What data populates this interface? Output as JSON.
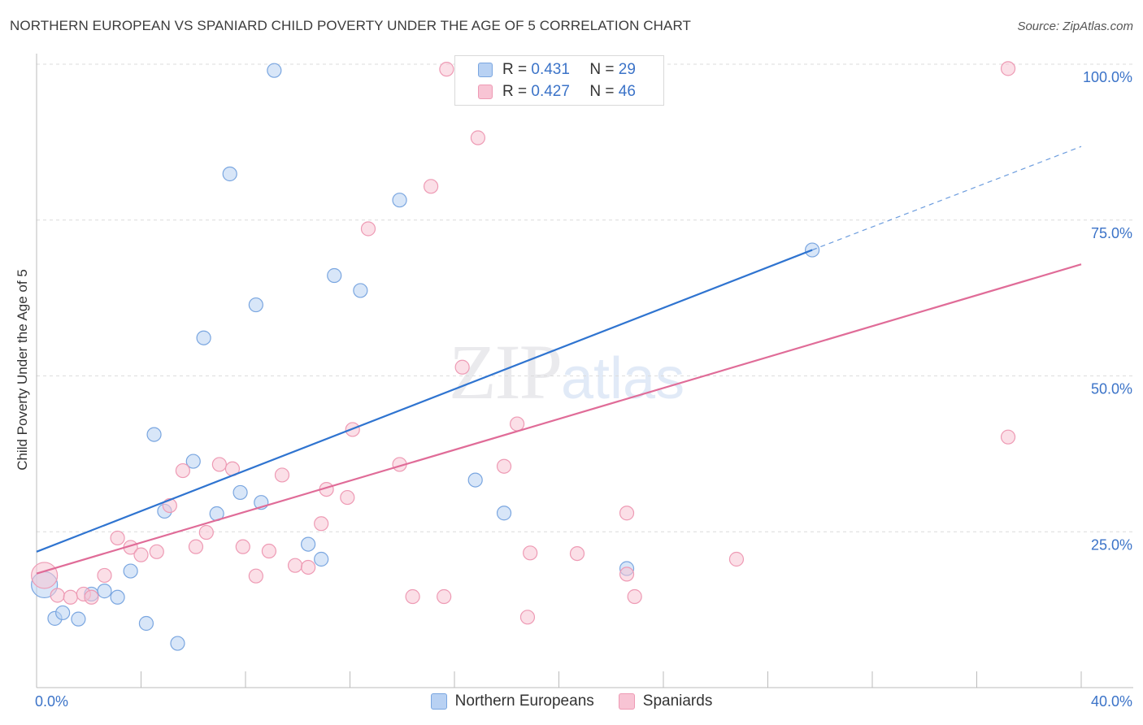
{
  "title": "NORTHERN EUROPEAN VS SPANIARD CHILD POVERTY UNDER THE AGE OF 5 CORRELATION CHART",
  "source": "Source: ZipAtlas.com",
  "watermark": {
    "zip": "ZIP",
    "atlas": "atlas"
  },
  "legend": {
    "r_label": "R =",
    "n_label": "N =",
    "rows": [
      {
        "r": "0.431",
        "n": "29"
      },
      {
        "r": "0.427",
        "n": "46"
      }
    ]
  },
  "chart_data": {
    "type": "scatter",
    "title": "NORTHERN EUROPEAN VS SPANIARD CHILD POVERTY UNDER THE AGE OF 5 CORRELATION CHART",
    "xlabel": "",
    "ylabel": "Child Poverty Under the Age of 5",
    "xlim": [
      0,
      40
    ],
    "ylim": [
      0,
      100
    ],
    "x_tick_labels": [
      "0.0%",
      "40.0%"
    ],
    "y_ticks": [
      25,
      50,
      75,
      100
    ],
    "y_tick_labels": [
      "25.0%",
      "50.0%",
      "75.0%",
      "100.0%"
    ],
    "grid": true,
    "legend_position": "top-center",
    "series": [
      {
        "name": "Northern Europeans",
        "color": "#7aa6e0",
        "fill": "#b8d1f3",
        "line_color": "#2f74d0",
        "r": 0.431,
        "n": 29,
        "trend": {
          "x": [
            0,
            29.7
          ],
          "y": [
            21.8,
            70.2
          ],
          "dashed_to": [
            40,
            86.8
          ]
        },
        "points": [
          [
            0.3,
            16.5
          ],
          [
            0.7,
            11.1
          ],
          [
            1.0,
            12.0
          ],
          [
            1.6,
            11.0
          ],
          [
            2.1,
            15.0
          ],
          [
            2.6,
            15.5
          ],
          [
            3.1,
            14.5
          ],
          [
            3.6,
            18.7
          ],
          [
            4.2,
            10.3
          ],
          [
            4.5,
            40.6
          ],
          [
            4.9,
            28.3
          ],
          [
            5.4,
            7.1
          ],
          [
            6.0,
            36.3
          ],
          [
            6.4,
            56.1
          ],
          [
            6.9,
            27.9
          ],
          [
            7.4,
            82.4
          ],
          [
            7.8,
            31.3
          ],
          [
            8.4,
            61.4
          ],
          [
            8.6,
            29.7
          ],
          [
            9.1,
            99.0
          ],
          [
            10.4,
            23.0
          ],
          [
            10.9,
            20.6
          ],
          [
            11.4,
            66.1
          ],
          [
            12.4,
            63.7
          ],
          [
            13.9,
            78.2
          ],
          [
            16.8,
            33.3
          ],
          [
            17.9,
            28.0
          ],
          [
            22.6,
            19.1
          ],
          [
            29.7,
            70.2
          ]
        ]
      },
      {
        "name": "Spaniards",
        "color": "#ee9ab4",
        "fill": "#f8c4d4",
        "line_color": "#e06c98",
        "r": 0.427,
        "n": 46,
        "trend": {
          "x": [
            0,
            40
          ],
          "y": [
            18.3,
            67.9
          ]
        },
        "points": [
          [
            0.3,
            18.0
          ],
          [
            0.8,
            14.8
          ],
          [
            1.3,
            14.5
          ],
          [
            1.8,
            15.0
          ],
          [
            2.1,
            14.5
          ],
          [
            2.6,
            18.0
          ],
          [
            3.1,
            24.0
          ],
          [
            3.6,
            22.5
          ],
          [
            4.0,
            21.3
          ],
          [
            4.6,
            21.8
          ],
          [
            5.1,
            29.2
          ],
          [
            5.6,
            34.8
          ],
          [
            6.1,
            22.6
          ],
          [
            6.5,
            24.9
          ],
          [
            7.0,
            35.8
          ],
          [
            7.5,
            35.1
          ],
          [
            7.9,
            22.6
          ],
          [
            8.4,
            17.9
          ],
          [
            8.9,
            21.9
          ],
          [
            9.4,
            34.1
          ],
          [
            9.9,
            19.6
          ],
          [
            10.4,
            19.3
          ],
          [
            10.9,
            26.3
          ],
          [
            11.1,
            31.8
          ],
          [
            11.9,
            30.5
          ],
          [
            12.1,
            41.4
          ],
          [
            13.9,
            35.8
          ],
          [
            14.4,
            14.6
          ],
          [
            15.1,
            80.4
          ],
          [
            15.6,
            14.6
          ],
          [
            15.7,
            99.2
          ],
          [
            16.3,
            51.4
          ],
          [
            16.9,
            88.2
          ],
          [
            17.9,
            35.5
          ],
          [
            18.4,
            42.3
          ],
          [
            18.8,
            11.3
          ],
          [
            18.9,
            21.6
          ],
          [
            20.7,
            21.5
          ],
          [
            22.6,
            18.2
          ],
          [
            22.9,
            14.6
          ],
          [
            22.6,
            28.0
          ],
          [
            26.8,
            20.6
          ],
          [
            37.2,
            40.2
          ],
          [
            37.2,
            99.3
          ],
          [
            12.7,
            73.6
          ],
          [
            19.0,
            99.8
          ]
        ]
      }
    ]
  }
}
